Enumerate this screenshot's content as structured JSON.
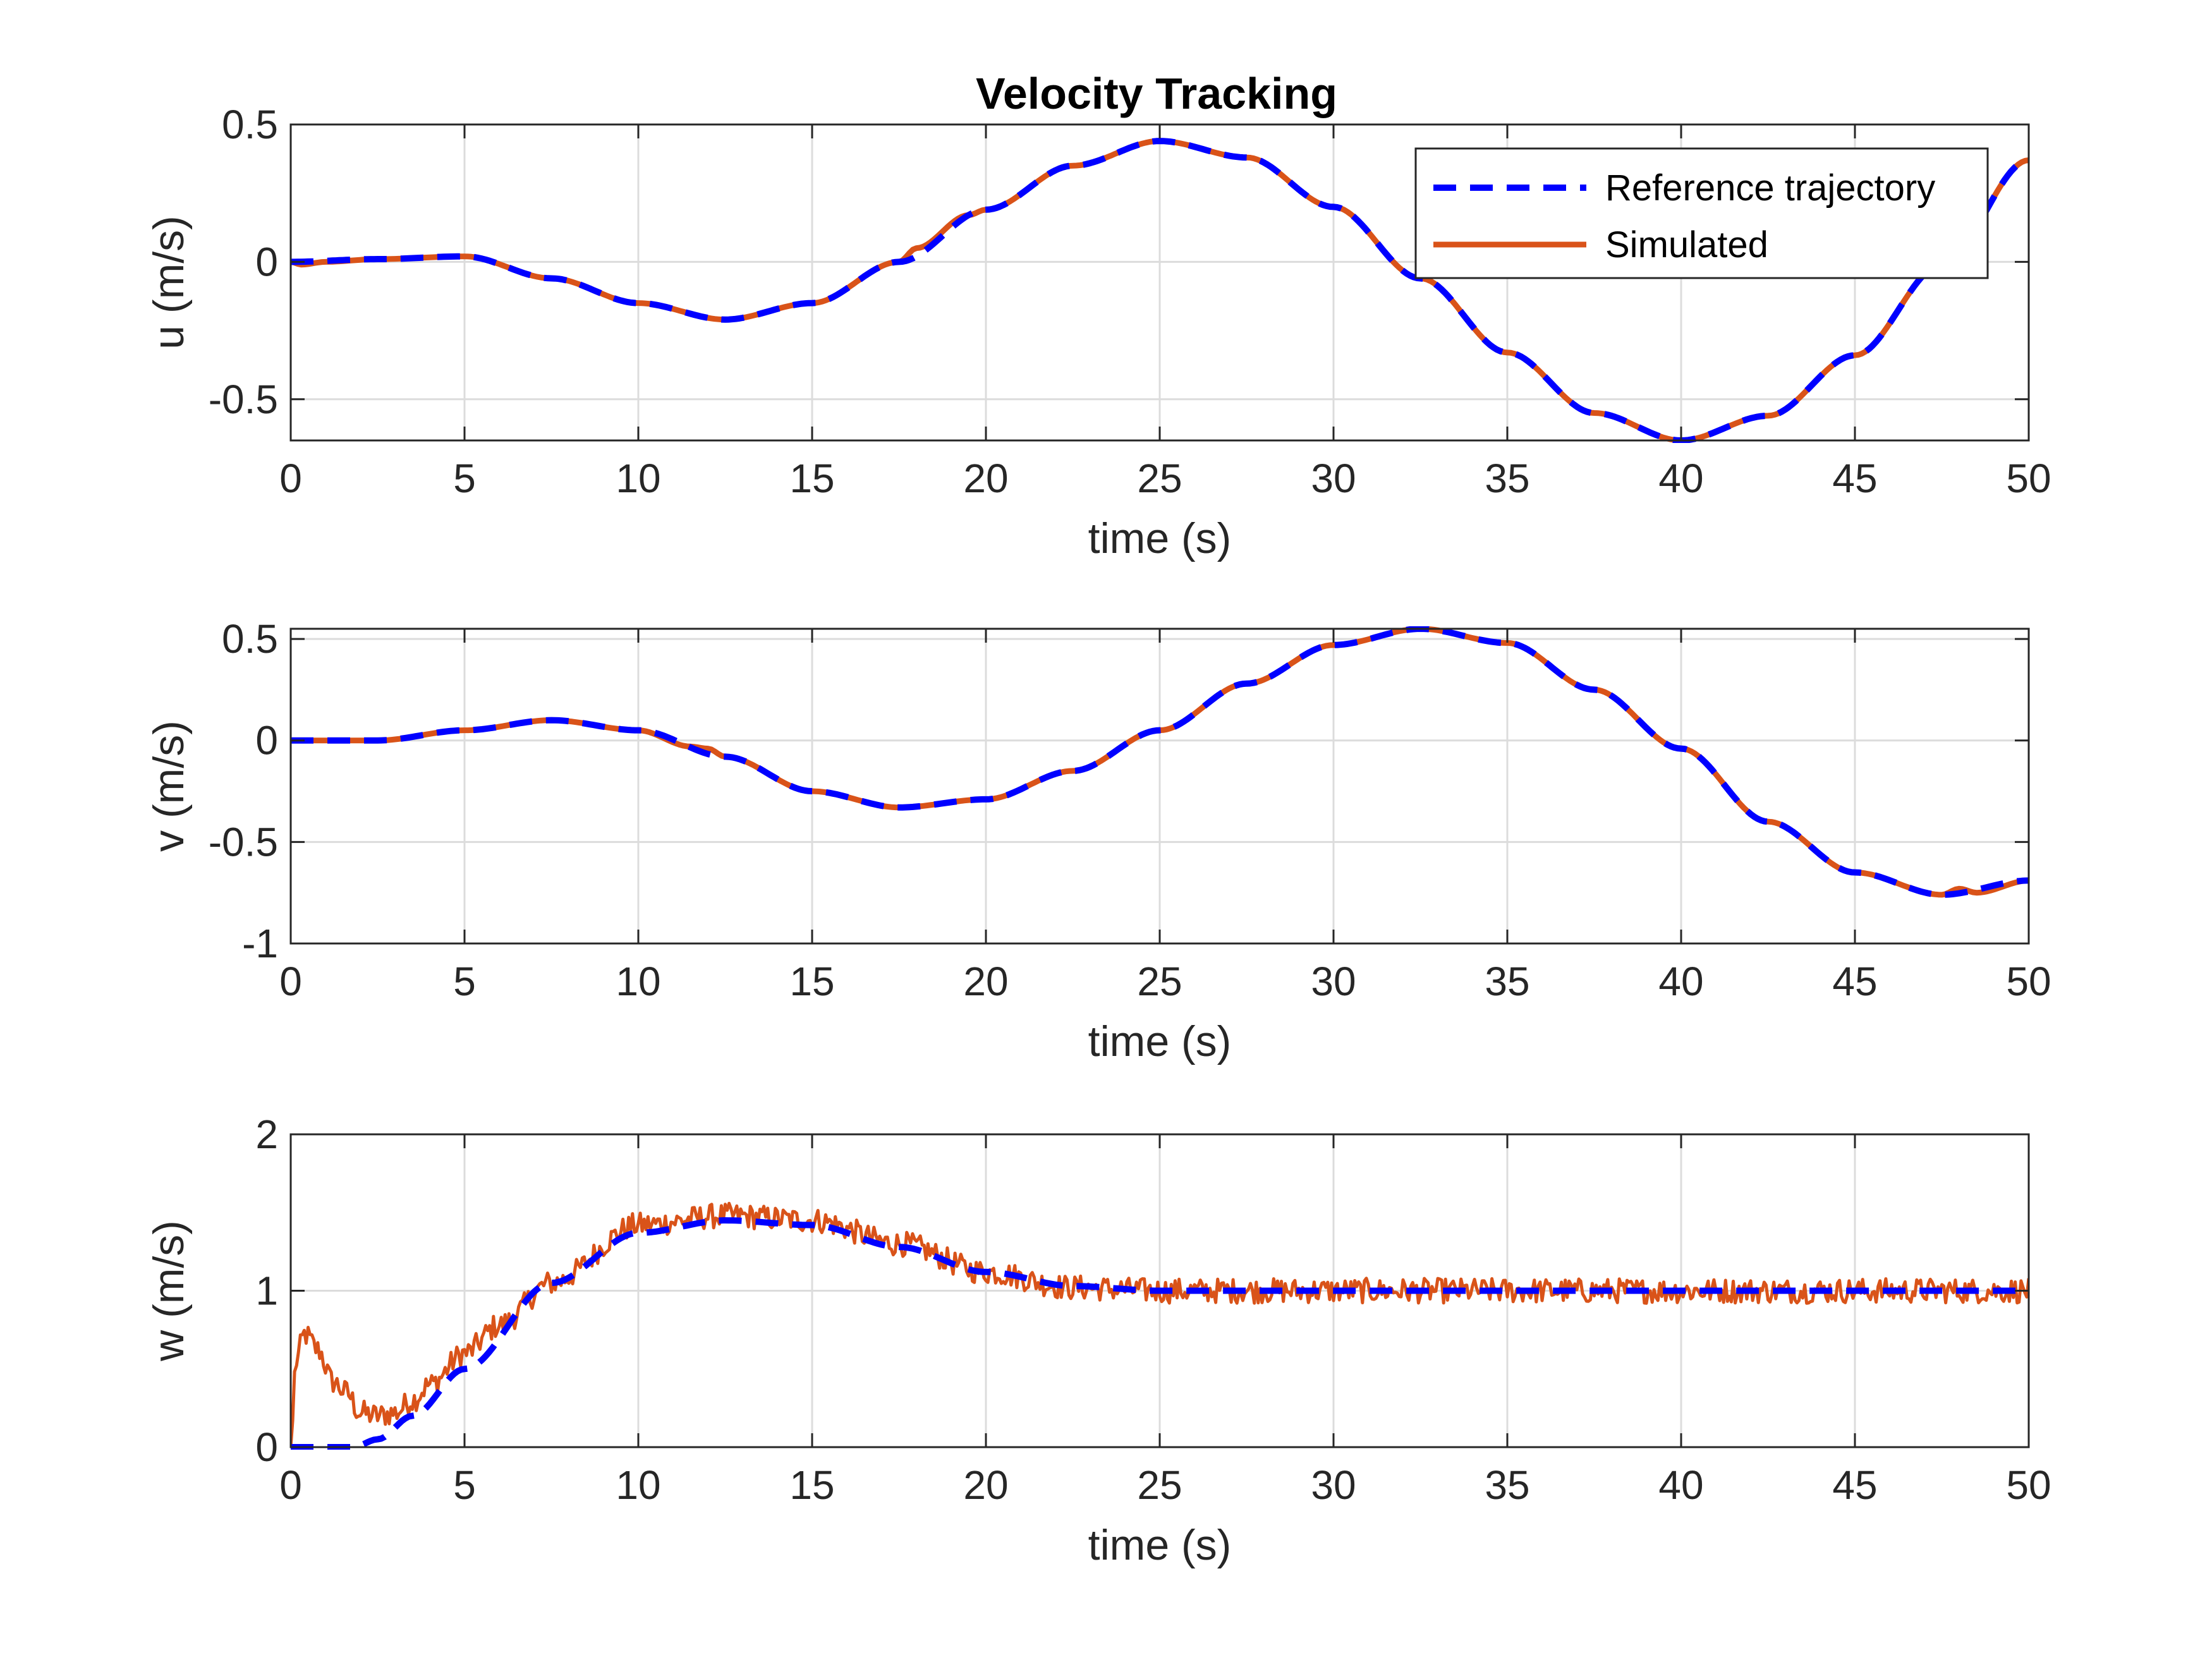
{
  "figure": {
    "title": "Velocity Tracking",
    "legend": {
      "placement": "top-right (top panel)",
      "entries": [
        {
          "name": "Reference trajectory",
          "color": "#0000ff",
          "style": "dashed"
        },
        {
          "name": "Simulated",
          "color": "#d95319",
          "style": "solid"
        }
      ]
    }
  },
  "chart_data": [
    {
      "type": "line",
      "title": "Velocity Tracking",
      "xlabel": "time (s)",
      "ylabel": "u (m/s)",
      "xlim": [
        0,
        50
      ],
      "ylim": [
        -0.65,
        0.5
      ],
      "xticks": [
        0,
        5,
        10,
        15,
        20,
        25,
        30,
        35,
        40,
        45,
        50
      ],
      "yticks": [
        -0.5,
        0,
        0.5
      ],
      "ytick_labels": [
        "-0.5",
        "0",
        "0.5"
      ],
      "grid": true,
      "legend": "top-right",
      "noise": 0.0,
      "series": [
        {
          "name": "Reference trajectory",
          "color": "#0000ff",
          "style": "dashed",
          "x": [
            0,
            2.5,
            5,
            7.5,
            10,
            12.5,
            15,
            17.5,
            20,
            22.5,
            25,
            27.5,
            30,
            32.5,
            35,
            37.5,
            40,
            42.5,
            45,
            47.5,
            50
          ],
          "y": [
            0.0,
            0.01,
            0.02,
            -0.06,
            -0.15,
            -0.21,
            -0.15,
            0.0,
            0.19,
            0.35,
            0.44,
            0.38,
            0.2,
            -0.06,
            -0.33,
            -0.55,
            -0.65,
            -0.56,
            -0.34,
            -0.01,
            0.37
          ]
        },
        {
          "name": "Simulated",
          "color": "#d95319",
          "style": "solid",
          "x": [
            0,
            0.3,
            1,
            2.5,
            5,
            7.5,
            10,
            12.5,
            15,
            17.5,
            18,
            19.5,
            20,
            22.5,
            25,
            27.5,
            30,
            32.5,
            35,
            37.5,
            40,
            42.5,
            45,
            47.5,
            50
          ],
          "y": [
            0.0,
            -0.01,
            0.0,
            0.01,
            0.02,
            -0.06,
            -0.15,
            -0.21,
            -0.15,
            0.0,
            0.05,
            0.17,
            0.19,
            0.35,
            0.44,
            0.38,
            0.2,
            -0.06,
            -0.33,
            -0.55,
            -0.65,
            -0.56,
            -0.34,
            -0.01,
            0.37
          ]
        }
      ]
    },
    {
      "type": "line",
      "xlabel": "time (s)",
      "ylabel": "v (m/s)",
      "xlim": [
        0,
        50
      ],
      "ylim": [
        -1,
        0.55
      ],
      "xticks": [
        0,
        5,
        10,
        15,
        20,
        25,
        30,
        35,
        40,
        45,
        50
      ],
      "yticks": [
        -1,
        -0.5,
        0,
        0.5
      ],
      "ytick_labels": [
        "-1",
        "-0.5",
        "0",
        "0.5"
      ],
      "grid": true,
      "noise": 0.0,
      "series": [
        {
          "name": "Reference trajectory",
          "color": "#0000ff",
          "style": "dashed",
          "x": [
            0,
            2.5,
            5,
            7.5,
            10,
            12.5,
            15,
            17.5,
            20,
            22.5,
            25,
            27.5,
            30,
            32.5,
            35,
            37.5,
            40,
            42.5,
            45,
            47.5,
            50
          ],
          "y": [
            0.0,
            0.0,
            0.05,
            0.1,
            0.05,
            -0.08,
            -0.25,
            -0.33,
            -0.29,
            -0.15,
            0.05,
            0.28,
            0.47,
            0.55,
            0.48,
            0.25,
            -0.04,
            -0.4,
            -0.65,
            -0.76,
            -0.69
          ]
        },
        {
          "name": "Simulated",
          "color": "#d95319",
          "style": "solid",
          "x": [
            0,
            2.5,
            5,
            7.5,
            10,
            11.5,
            12,
            12.5,
            15,
            17.5,
            20,
            22.5,
            25,
            27.5,
            30,
            32.5,
            35,
            37.5,
            40,
            42.5,
            45,
            47.5,
            48,
            48.5,
            50
          ],
          "y": [
            0.0,
            0.0,
            0.05,
            0.1,
            0.05,
            -0.03,
            -0.04,
            -0.08,
            -0.25,
            -0.33,
            -0.29,
            -0.15,
            0.05,
            0.28,
            0.47,
            0.55,
            0.48,
            0.25,
            -0.04,
            -0.4,
            -0.65,
            -0.76,
            -0.73,
            -0.75,
            -0.69
          ]
        }
      ]
    },
    {
      "type": "line",
      "xlabel": "time (s)",
      "ylabel": "w (m/s)",
      "xlim": [
        0,
        50
      ],
      "ylim": [
        0,
        2
      ],
      "xticks": [
        0,
        5,
        10,
        15,
        20,
        25,
        30,
        35,
        40,
        45,
        50
      ],
      "yticks": [
        0,
        1,
        2
      ],
      "ytick_labels": [
        "0",
        "1",
        "2"
      ],
      "grid": true,
      "noise": 0.08,
      "series": [
        {
          "name": "Reference trajectory",
          "color": "#0000ff",
          "style": "dashed",
          "x": [
            0,
            1.8,
            2.5,
            3.5,
            5,
            7.5,
            10,
            12.5,
            15,
            17.5,
            20,
            22.5,
            25,
            30,
            35,
            40,
            45,
            50
          ],
          "y": [
            0.0,
            0.0,
            0.05,
            0.2,
            0.5,
            1.05,
            1.37,
            1.45,
            1.42,
            1.28,
            1.12,
            1.03,
            1.0,
            1.0,
            1.0,
            1.0,
            1.0,
            1.0
          ]
        },
        {
          "name": "Simulated",
          "color": "#d95319",
          "style": "solid",
          "x": [
            0,
            0.15,
            0.4,
            0.8,
            1.2,
            1.6,
            2.0,
            2.5,
            3.0,
            3.5,
            4.0,
            5.0,
            6.0,
            7.5,
            10,
            12.5,
            15,
            17.5,
            20,
            22.5,
            25,
            30,
            35,
            40,
            45,
            50
          ],
          "y": [
            0.0,
            0.55,
            0.72,
            0.62,
            0.42,
            0.35,
            0.22,
            0.2,
            0.22,
            0.3,
            0.4,
            0.6,
            0.78,
            1.05,
            1.42,
            1.48,
            1.45,
            1.3,
            1.12,
            1.02,
            1.0,
            1.0,
            1.0,
            1.0,
            1.0,
            1.0
          ]
        }
      ]
    }
  ]
}
